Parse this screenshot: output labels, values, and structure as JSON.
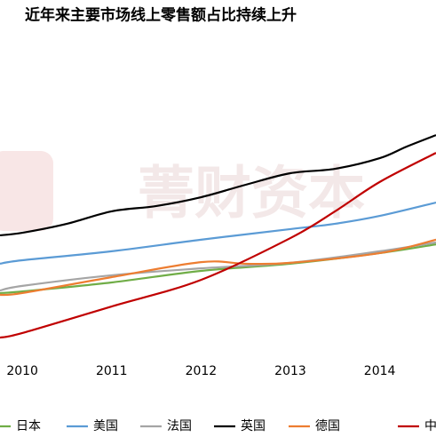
{
  "chart_data": {
    "type": "line",
    "title": "近年来主要市场线上零售额占比持续上升",
    "watermark": "菁财资本",
    "xlim": [
      2009.75,
      2014.63
    ],
    "xticks": [
      2010,
      2011,
      2012,
      2013,
      2014
    ],
    "ylim": [
      0,
      100
    ],
    "series": [
      {
        "name": "日本",
        "color": "#70ad47",
        "x": [
          2009.75,
          2010,
          2011,
          2012,
          2013,
          2014,
          2014.63
        ],
        "values": [
          23.1,
          23.8,
          27.7,
          32.7,
          35.8,
          40.4,
          44.2
        ]
      },
      {
        "name": "美国",
        "color": "#5b9bd5",
        "x": [
          2009.75,
          2010,
          2011,
          2012,
          2013,
          2013.5,
          2014,
          2014.63
        ],
        "values": [
          35.8,
          37.3,
          41.2,
          46.2,
          50.8,
          53.1,
          56.5,
          62.3
        ]
      },
      {
        "name": "法国",
        "color": "#a5a5a5",
        "x": [
          2009.75,
          2010,
          2011,
          2012,
          2013,
          2014,
          2014.63
        ],
        "values": [
          24.2,
          26.2,
          30.8,
          33.8,
          36.2,
          41.2,
          45
        ]
      },
      {
        "name": "英国",
        "color": "#000000",
        "x": [
          2009.75,
          2010,
          2010.5,
          2011,
          2011.5,
          2012,
          2012.5,
          2013,
          2013.5,
          2014,
          2014.3,
          2014.63
        ],
        "values": [
          48.1,
          49.2,
          53.1,
          58.5,
          60.8,
          64.6,
          70,
          75,
          76.9,
          81.5,
          86.5,
          91.5
        ]
      },
      {
        "name": "德国",
        "color": "#ed7d31",
        "x": [
          2009.75,
          2010,
          2011,
          2012,
          2012.5,
          2013,
          2014,
          2014.63
        ],
        "values": [
          22.3,
          23.1,
          30,
          36.5,
          35.8,
          36.2,
          40.4,
          46.2
        ]
      },
      {
        "name": "中",
        "color": "#c00000",
        "x": [
          2009.75,
          2010,
          2011,
          2012,
          2013,
          2013.5,
          2014,
          2014.63
        ],
        "values": [
          3.8,
          5.8,
          17.3,
          28.8,
          46.9,
          58.5,
          71.2,
          83.8
        ]
      }
    ]
  }
}
